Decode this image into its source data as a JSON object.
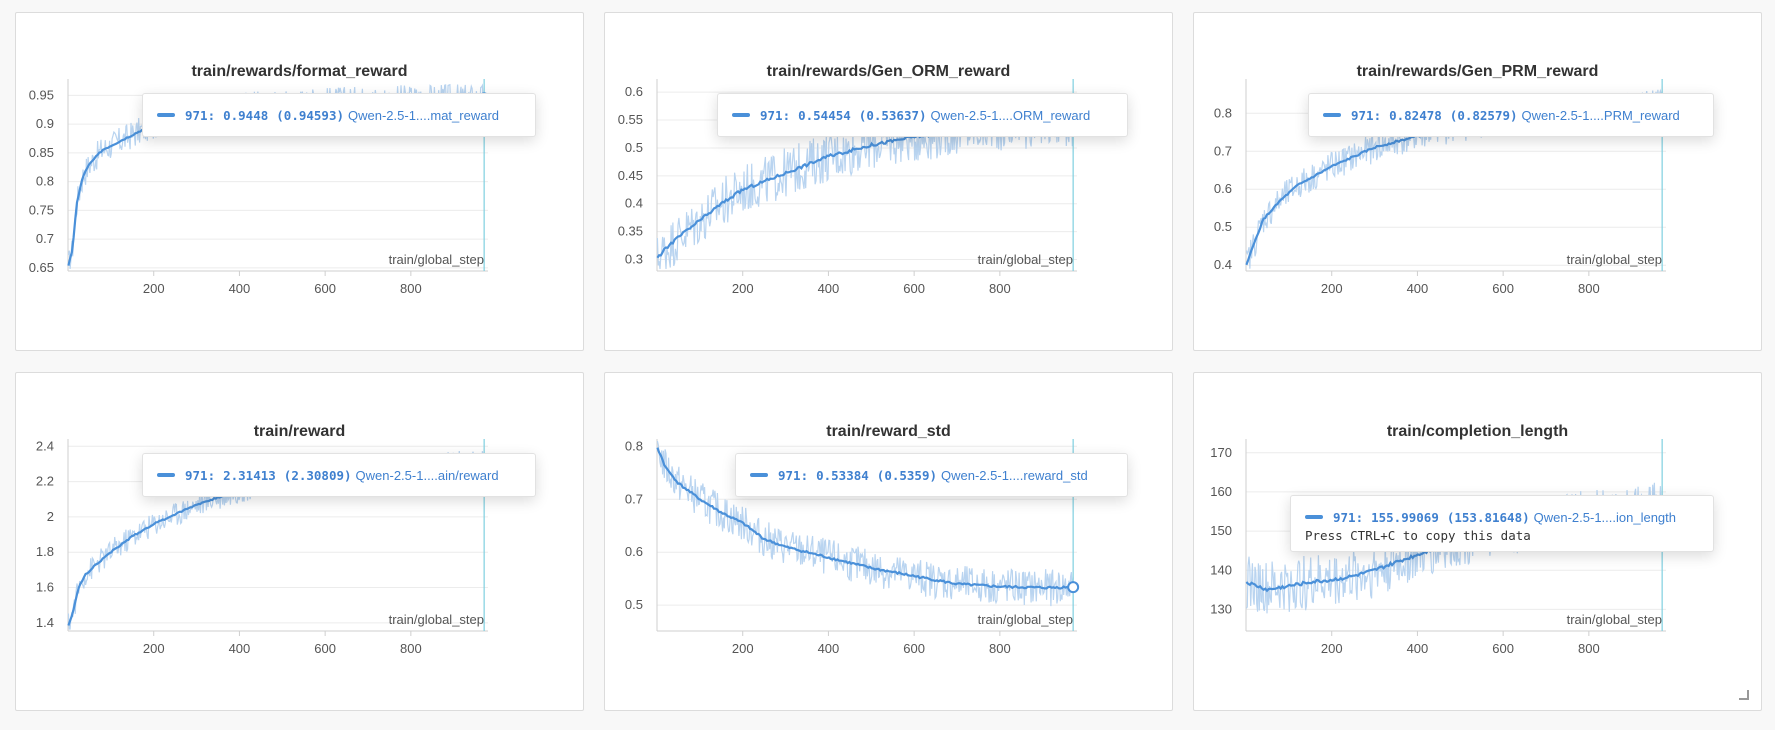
{
  "colors": {
    "smoothed": "#4a90d9",
    "raw": "#b9d4f0",
    "cursor": "#7fcfe0",
    "grid": "#ececec",
    "axis": "#cfcfcf"
  },
  "run_name": "Qwen-2.5-1....",
  "x_axis_label": "train/global_step",
  "cursor_step": "971",
  "copy_hint": "Press CTRL+C to copy this data",
  "chart_data": [
    {
      "type": "line",
      "title": "train/rewards/format_reward",
      "xlabel": "train/global_step",
      "xlim": [
        0,
        980
      ],
      "ylim": [
        0.648,
        0.975
      ],
      "xticks": [
        200,
        400,
        600,
        800
      ],
      "yticks": [
        0.65,
        0.7,
        0.75,
        0.8,
        0.85,
        0.9,
        0.95
      ],
      "yticklabels": [
        "0.65",
        "0.7",
        "0.75",
        "0.8",
        "0.85",
        "0.9",
        "0.95"
      ],
      "series": [
        {
          "x": [
            0,
            10,
            20,
            35,
            50,
            80,
            120,
            160,
            200,
            250,
            300,
            400,
            500,
            600,
            700,
            800,
            900,
            971
          ],
          "values": [
            0.65,
            0.68,
            0.76,
            0.81,
            0.83,
            0.855,
            0.87,
            0.885,
            0.9,
            0.912,
            0.92,
            0.93,
            0.936,
            0.94,
            0.942,
            0.944,
            0.945,
            0.9448
          ]
        }
      ],
      "noise": 0.025,
      "tooltip": {
        "step": "971",
        "value": "0.9448",
        "smoothed": "(0.94593)",
        "run": "Qwen-2.5-1....mat_reward"
      }
    },
    {
      "type": "line",
      "title": "train/rewards/Gen_ORM_reward",
      "xlabel": "train/global_step",
      "xlim": [
        0,
        980
      ],
      "ylim": [
        0.283,
        0.62
      ],
      "xticks": [
        200,
        400,
        600,
        800
      ],
      "yticks": [
        0.3,
        0.35,
        0.4,
        0.45,
        0.5,
        0.55,
        0.6
      ],
      "yticklabels": [
        "0.3",
        "0.35",
        "0.4",
        "0.45",
        "0.5",
        "0.55",
        "0.6"
      ],
      "series": [
        {
          "x": [
            0,
            20,
            50,
            100,
            150,
            200,
            250,
            300,
            350,
            400,
            450,
            500,
            600,
            700,
            800,
            900,
            971
          ],
          "values": [
            0.3,
            0.32,
            0.34,
            0.37,
            0.4,
            0.425,
            0.44,
            0.455,
            0.47,
            0.485,
            0.495,
            0.505,
            0.52,
            0.53,
            0.54,
            0.545,
            0.545
          ]
        }
      ],
      "noise": 0.045,
      "tooltip": {
        "step": "971",
        "value": "0.54454",
        "smoothed": "(0.53637)",
        "run": "Qwen-2.5-1....ORM_reward"
      }
    },
    {
      "type": "line",
      "title": "train/rewards/Gen_PRM_reward",
      "xlabel": "train/global_step",
      "xlim": [
        0,
        980
      ],
      "ylim": [
        0.39,
        0.885
      ],
      "xticks": [
        200,
        400,
        600,
        800
      ],
      "yticks": [
        0.4,
        0.5,
        0.6,
        0.7,
        0.8
      ],
      "yticklabels": [
        "0.4",
        "0.5",
        "0.6",
        "0.7",
        "0.8"
      ],
      "series": [
        {
          "x": [
            0,
            20,
            40,
            80,
            120,
            200,
            300,
            400,
            500,
            600,
            700,
            800,
            900,
            971
          ],
          "values": [
            0.4,
            0.46,
            0.52,
            0.57,
            0.61,
            0.66,
            0.71,
            0.74,
            0.765,
            0.785,
            0.8,
            0.81,
            0.82,
            0.8248
          ]
        }
      ],
      "noise": 0.04,
      "tooltip": {
        "step": "971",
        "value": "0.82478",
        "smoothed": "(0.82579)",
        "run": "Qwen-2.5-1....PRM_reward"
      }
    },
    {
      "type": "line",
      "title": "train/reward",
      "xlabel": "train/global_step",
      "xlim": [
        0,
        980
      ],
      "ylim": [
        1.365,
        2.43
      ],
      "xticks": [
        200,
        400,
        600,
        800
      ],
      "yticks": [
        1.4,
        1.6,
        1.8,
        2.0,
        2.2,
        2.4
      ],
      "yticklabels": [
        "1.4",
        "1.6",
        "1.8",
        "2",
        "2.2",
        "2.4"
      ],
      "series": [
        {
          "x": [
            0,
            10,
            25,
            40,
            60,
            100,
            150,
            200,
            300,
            400,
            500,
            600,
            700,
            800,
            900,
            971
          ],
          "values": [
            1.38,
            1.45,
            1.6,
            1.67,
            1.72,
            1.8,
            1.89,
            1.96,
            2.07,
            2.15,
            2.2,
            2.24,
            2.27,
            2.29,
            2.305,
            2.314
          ]
        }
      ],
      "noise": 0.07,
      "tooltip": {
        "step": "971",
        "value": "2.31413",
        "smoothed": "(2.30809)",
        "run": "Qwen-2.5-1....ain/reward"
      }
    },
    {
      "type": "line",
      "title": "train/reward_std",
      "xlabel": "train/global_step",
      "xlim": [
        0,
        980
      ],
      "ylim": [
        0.455,
        0.81
      ],
      "xticks": [
        200,
        400,
        600,
        800
      ],
      "yticks": [
        0.5,
        0.6,
        0.7,
        0.8
      ],
      "yticklabels": [
        "0.5",
        "0.6",
        "0.7",
        "0.8"
      ],
      "series": [
        {
          "x": [
            0,
            20,
            50,
            100,
            150,
            200,
            250,
            300,
            400,
            500,
            600,
            700,
            800,
            900,
            971
          ],
          "values": [
            0.8,
            0.76,
            0.73,
            0.7,
            0.675,
            0.655,
            0.625,
            0.61,
            0.59,
            0.57,
            0.555,
            0.54,
            0.535,
            0.533,
            0.534
          ]
        }
      ],
      "noise": 0.035,
      "tooltip": {
        "step": "971",
        "value": "0.53384",
        "smoothed": "(0.5359)",
        "run": "Qwen-2.5-1....reward_std"
      }
    },
    {
      "type": "line",
      "title": "train/completion_length",
      "xlabel": "train/global_step",
      "xlim": [
        0,
        980
      ],
      "ylim": [
        125,
        173
      ],
      "xticks": [
        200,
        400,
        600,
        800
      ],
      "yticks": [
        130,
        140,
        150,
        160,
        170
      ],
      "yticklabels": [
        "130",
        "140",
        "150",
        "160",
        "170"
      ],
      "series": [
        {
          "x": [
            0,
            50,
            100,
            150,
            200,
            250,
            300,
            400,
            500,
            600,
            700,
            800,
            900,
            971
          ],
          "values": [
            137,
            135,
            136,
            137,
            137.5,
            138.5,
            140,
            144,
            148,
            150.5,
            152.5,
            153.5,
            154,
            156
          ]
        }
      ],
      "noise": 7,
      "tooltip": {
        "step": "971",
        "value": "155.99069",
        "smoothed": "(153.81648)",
        "run": "Qwen-2.5-1....ion_length",
        "hint": "Press CTRL+C to copy this data"
      }
    }
  ]
}
